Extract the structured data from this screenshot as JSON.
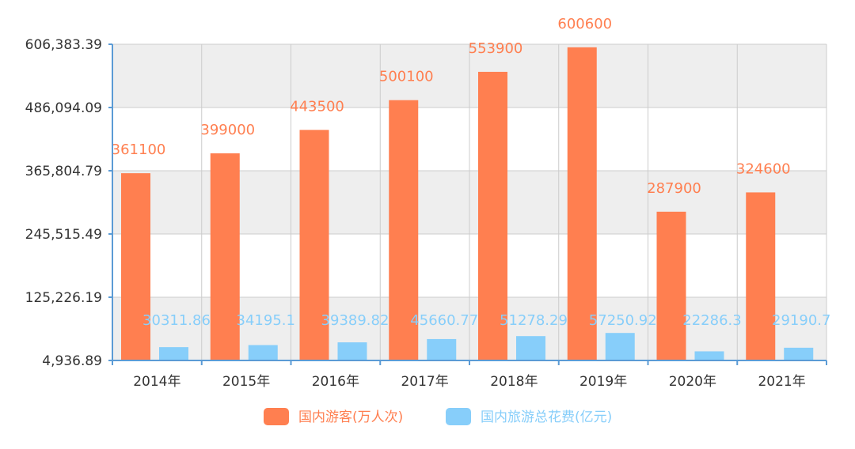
{
  "colors": {
    "tourists": "#ff7f50",
    "spending": "#87cefa",
    "band_dark": "#eeeeee",
    "band_light": "#ffffff",
    "grid": "#cccccc",
    "axis": "#5b9bd5"
  },
  "chart_data": {
    "type": "bar",
    "categories": [
      "2014年",
      "2015年",
      "2016年",
      "2017年",
      "2018年",
      "2019年",
      "2020年",
      "2021年"
    ],
    "ylim": [
      4936.89,
      606383.39
    ],
    "y_ticks": [
      "4,936.89",
      "125,226.19",
      "245,515.49",
      "365,804.79",
      "486,094.09",
      "606,383.39"
    ],
    "y_tick_values": [
      4936.89,
      125226.19,
      245515.49,
      365804.79,
      486094.09,
      606383.39
    ],
    "grid": true,
    "legend_position": "bottom",
    "series": [
      {
        "name": "国内游客(万人次)",
        "values": [
          361100,
          399000,
          443500,
          500100,
          553900,
          600600,
          287900,
          324600
        ],
        "labels": [
          "361100",
          "399000",
          "443500",
          "500100",
          "553900",
          "600600",
          "287900",
          "324600"
        ]
      },
      {
        "name": "国内旅游总花费(亿元)",
        "values": [
          30311.86,
          34195.1,
          39389.82,
          45660.77,
          51278.29,
          57250.92,
          22286.3,
          29190.7
        ],
        "labels": [
          "30311.86",
          "34195.1",
          "39389.82",
          "45660.77",
          "51278.29",
          "57250.92",
          "22286.3",
          "29190.7"
        ]
      }
    ]
  }
}
